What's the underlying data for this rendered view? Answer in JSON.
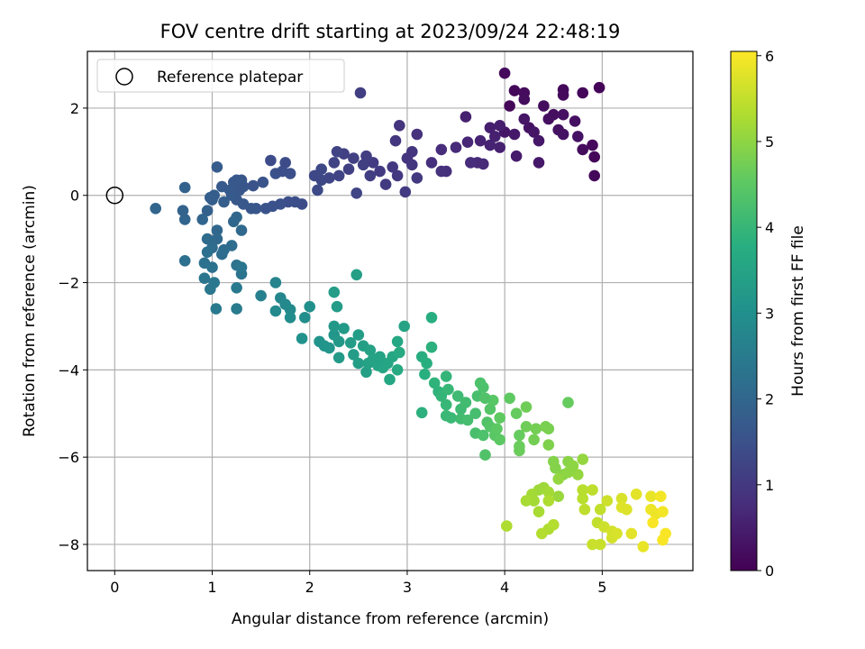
{
  "chart_data": {
    "type": "scatter",
    "title": "FOV centre drift starting at 2023/09/24 22:48:19",
    "xlabel": "Angular distance from reference (arcmin)",
    "ylabel": "Rotation from reference (arcmin)",
    "xlim": [
      -0.28,
      5.93
    ],
    "ylim": [
      -8.6,
      3.3
    ],
    "x_ticks": [
      0,
      1,
      2,
      3,
      4,
      5
    ],
    "x_tick_labels": [
      "0",
      "1",
      "2",
      "3",
      "4",
      "5"
    ],
    "y_ticks": [
      -8,
      -6,
      -4,
      -2,
      0,
      2
    ],
    "y_tick_labels": [
      "−8",
      "−6",
      "−4",
      "−2",
      "0",
      "2"
    ],
    "grid": true,
    "legend": {
      "position": "top-left",
      "entries": [
        {
          "label": "Reference platepar",
          "marker": "open-circle"
        }
      ]
    },
    "reference_point": {
      "x": 0,
      "y": 0
    },
    "colorbar": {
      "label": "Hours from first FF file",
      "range": [
        0,
        6.05
      ],
      "ticks": [
        0,
        1,
        2,
        3,
        4,
        5,
        6
      ],
      "tick_labels": [
        "0",
        "1",
        "2",
        "3",
        "4",
        "5",
        "6"
      ],
      "colormap": "viridis"
    },
    "points": [
      [
        4.97,
        2.47,
        0.05
      ],
      [
        4.8,
        2.35,
        0.1
      ],
      [
        4.6,
        2.42,
        0.12
      ],
      [
        4.6,
        2.3,
        0.15
      ],
      [
        4.05,
        2.05,
        0.1
      ],
      [
        4.1,
        2.4,
        0.12
      ],
      [
        4.2,
        2.35,
        0.18
      ],
      [
        4.2,
        2.2,
        0.2
      ],
      [
        4.4,
        2.05,
        0.2
      ],
      [
        4.5,
        1.85,
        0.22
      ],
      [
        4.6,
        1.85,
        0.25
      ],
      [
        4.45,
        1.75,
        0.25
      ],
      [
        4.72,
        1.7,
        0.25
      ],
      [
        4.9,
        1.15,
        0.15
      ],
      [
        4.8,
        1.05,
        0.18
      ],
      [
        4.92,
        0.88,
        0.1
      ],
      [
        4.92,
        0.45,
        0.12
      ],
      [
        4.75,
        1.35,
        0.3
      ],
      [
        4.25,
        1.55,
        0.3
      ],
      [
        4.2,
        1.75,
        0.35
      ],
      [
        4.0,
        1.45,
        0.35
      ],
      [
        4.1,
        1.4,
        0.4
      ],
      [
        4.3,
        1.45,
        0.35
      ],
      [
        4.35,
        1.25,
        0.4
      ],
      [
        4.55,
        1.5,
        0.3
      ],
      [
        4.35,
        0.75,
        0.4
      ],
      [
        4.12,
        0.9,
        0.45
      ],
      [
        3.95,
        1.6,
        0.5
      ],
      [
        3.85,
        1.55,
        0.5
      ],
      [
        3.9,
        1.35,
        0.55
      ],
      [
        3.95,
        1.1,
        0.55
      ],
      [
        3.85,
        1.15,
        0.6
      ],
      [
        3.75,
        1.25,
        0.6
      ],
      [
        3.62,
        1.22,
        0.65
      ],
      [
        3.5,
        1.1,
        0.7
      ],
      [
        3.6,
        1.8,
        0.55
      ],
      [
        3.72,
        0.75,
        0.7
      ],
      [
        3.78,
        0.72,
        0.7
      ],
      [
        3.65,
        0.75,
        0.75
      ],
      [
        4.6,
        1.4,
        0.3
      ],
      [
        4.0,
        2.8,
        0.15
      ],
      [
        3.35,
        1.05,
        0.75
      ],
      [
        3.25,
        0.75,
        0.8
      ],
      [
        3.4,
        0.55,
        0.8
      ],
      [
        3.35,
        0.55,
        0.85
      ],
      [
        3.1,
        1.4,
        0.85
      ],
      [
        3.05,
        1.0,
        0.9
      ],
      [
        3.0,
        0.85,
        0.9
      ],
      [
        3.05,
        0.7,
        0.95
      ],
      [
        2.92,
        1.6,
        0.9
      ],
      [
        2.88,
        1.25,
        0.95
      ],
      [
        2.9,
        0.45,
        1.0
      ],
      [
        2.98,
        0.08,
        1.05
      ],
      [
        3.1,
        0.4,
        1.0
      ],
      [
        2.85,
        0.65,
        1.0
      ],
      [
        2.78,
        0.25,
        1.05
      ],
      [
        2.72,
        0.55,
        1.05
      ],
      [
        2.62,
        0.45,
        1.1
      ],
      [
        2.55,
        0.7,
        1.1
      ],
      [
        2.65,
        0.75,
        1.05
      ],
      [
        2.58,
        0.9,
        1.1
      ],
      [
        2.45,
        0.85,
        1.15
      ],
      [
        2.4,
        0.6,
        1.15
      ],
      [
        2.35,
        0.95,
        1.15
      ],
      [
        2.28,
        1.0,
        1.2
      ],
      [
        2.25,
        0.75,
        1.2
      ],
      [
        2.3,
        0.45,
        1.2
      ],
      [
        2.48,
        0.05,
        1.25
      ],
      [
        2.52,
        2.35,
        1.1
      ],
      [
        2.2,
        0.4,
        1.25
      ],
      [
        2.12,
        0.6,
        1.3
      ],
      [
        2.05,
        0.45,
        1.3
      ],
      [
        2.12,
        0.35,
        1.3
      ],
      [
        2.08,
        0.12,
        1.35
      ],
      [
        1.92,
        -0.2,
        1.4
      ],
      [
        1.85,
        -0.15,
        1.45
      ],
      [
        1.78,
        -0.15,
        1.45
      ],
      [
        1.7,
        -0.2,
        1.5
      ],
      [
        1.62,
        -0.25,
        1.5
      ],
      [
        1.55,
        -0.3,
        1.55
      ],
      [
        1.45,
        -0.3,
        1.6
      ],
      [
        1.4,
        -0.3,
        1.6
      ],
      [
        1.32,
        -0.2,
        1.65
      ],
      [
        1.25,
        -0.1,
        1.65
      ],
      [
        1.2,
        0.0,
        1.7
      ],
      [
        1.18,
        0.12,
        1.7
      ],
      [
        1.28,
        0.12,
        1.65
      ],
      [
        1.32,
        0.2,
        1.6
      ],
      [
        1.42,
        0.22,
        1.55
      ],
      [
        1.52,
        0.3,
        1.55
      ],
      [
        1.65,
        0.5,
        1.5
      ],
      [
        1.72,
        0.55,
        1.45
      ],
      [
        1.8,
        0.5,
        1.45
      ],
      [
        1.6,
        0.8,
        1.4
      ],
      [
        1.75,
        0.75,
        1.4
      ],
      [
        1.3,
        0.35,
        1.6
      ],
      [
        1.25,
        0.35,
        1.65
      ],
      [
        1.22,
        0.3,
        1.65
      ],
      [
        1.1,
        0.2,
        1.7
      ],
      [
        1.05,
        0.65,
        1.75
      ],
      [
        1.02,
        0.0,
        1.8
      ],
      [
        1.0,
        -0.1,
        1.8
      ],
      [
        0.95,
        -0.35,
        1.85
      ],
      [
        0.98,
        -0.05,
        1.8
      ],
      [
        1.12,
        -0.15,
        1.8
      ],
      [
        0.72,
        0.18,
        1.9
      ],
      [
        0.7,
        -0.35,
        1.9
      ],
      [
        0.72,
        -0.55,
        1.95
      ],
      [
        0.9,
        -0.55,
        1.95
      ],
      [
        0.42,
        -0.3,
        1.95
      ],
      [
        1.05,
        -0.8,
        2.0
      ],
      [
        1.22,
        -0.6,
        2.0
      ],
      [
        1.25,
        -0.5,
        2.0
      ],
      [
        1.3,
        -0.8,
        2.05
      ],
      [
        1.05,
        -1.0,
        2.05
      ],
      [
        1.0,
        -1.2,
        2.1
      ],
      [
        0.95,
        -1.0,
        2.1
      ],
      [
        1.12,
        -1.25,
        2.1
      ],
      [
        1.2,
        -1.15,
        2.15
      ],
      [
        1.1,
        -1.35,
        2.15
      ],
      [
        0.95,
        -1.3,
        2.2
      ],
      [
        0.72,
        -1.5,
        2.2
      ],
      [
        0.92,
        -1.55,
        2.25
      ],
      [
        1.0,
        -1.65,
        2.25
      ],
      [
        1.25,
        -1.6,
        2.3
      ],
      [
        1.3,
        -1.8,
        2.3
      ],
      [
        1.3,
        -1.65,
        2.35
      ],
      [
        0.92,
        -1.9,
        2.35
      ],
      [
        1.02,
        -2.0,
        2.4
      ],
      [
        0.98,
        -2.15,
        2.4
      ],
      [
        1.25,
        -2.12,
        2.45
      ],
      [
        1.04,
        -2.6,
        2.45
      ],
      [
        1.25,
        -2.6,
        2.5
      ],
      [
        1.5,
        -2.3,
        2.6
      ],
      [
        1.65,
        -2.0,
        2.7
      ],
      [
        1.7,
        -2.35,
        2.75
      ],
      [
        1.75,
        -2.5,
        2.8
      ],
      [
        1.8,
        -2.62,
        2.85
      ],
      [
        1.8,
        -2.8,
        2.9
      ],
      [
        1.65,
        -2.65,
        2.85
      ],
      [
        1.95,
        -2.8,
        2.95
      ],
      [
        2.0,
        -2.55,
        3.0
      ],
      [
        1.92,
        -3.28,
        3.05
      ],
      [
        2.1,
        -3.35,
        3.1
      ],
      [
        2.15,
        -3.45,
        3.1
      ],
      [
        2.2,
        -3.5,
        3.15
      ],
      [
        2.25,
        -3.2,
        3.15
      ],
      [
        2.25,
        -3.0,
        3.2
      ],
      [
        2.3,
        -3.35,
        3.2
      ],
      [
        2.35,
        -3.05,
        3.25
      ],
      [
        2.3,
        -3.72,
        3.25
      ],
      [
        2.42,
        -3.38,
        3.3
      ],
      [
        2.45,
        -3.65,
        3.3
      ],
      [
        2.5,
        -3.85,
        3.35
      ],
      [
        2.5,
        -3.2,
        3.35
      ],
      [
        2.55,
        -3.45,
        3.4
      ],
      [
        2.58,
        -4.05,
        3.4
      ],
      [
        2.6,
        -3.85,
        3.45
      ],
      [
        2.62,
        -3.55,
        3.45
      ],
      [
        2.65,
        -3.75,
        3.5
      ],
      [
        2.7,
        -3.9,
        3.5
      ],
      [
        2.72,
        -3.7,
        3.5
      ],
      [
        2.75,
        -3.95,
        3.55
      ],
      [
        2.8,
        -3.85,
        3.55
      ],
      [
        2.82,
        -4.22,
        3.6
      ],
      [
        2.85,
        -3.7,
        3.6
      ],
      [
        2.9,
        -3.35,
        3.6
      ],
      [
        2.9,
        -4.0,
        3.65
      ],
      [
        2.92,
        -3.6,
        3.65
      ],
      [
        2.97,
        -3.0,
        3.5
      ],
      [
        2.25,
        -2.22,
        3.3
      ],
      [
        2.28,
        -2.55,
        3.3
      ],
      [
        2.48,
        -1.82,
        3.4
      ],
      [
        3.15,
        -3.7,
        3.75
      ],
      [
        3.2,
        -3.85,
        3.8
      ],
      [
        3.18,
        -4.1,
        3.8
      ],
      [
        3.15,
        -4.98,
        3.85
      ],
      [
        3.25,
        -3.48,
        3.85
      ],
      [
        3.28,
        -4.3,
        3.9
      ],
      [
        3.32,
        -4.5,
        3.9
      ],
      [
        3.25,
        -2.8,
        3.75
      ],
      [
        3.35,
        -4.6,
        3.95
      ],
      [
        3.4,
        -4.15,
        3.95
      ],
      [
        3.42,
        -4.45,
        4.0
      ],
      [
        3.4,
        -4.8,
        4.0
      ],
      [
        3.45,
        -5.1,
        4.05
      ],
      [
        3.4,
        -5.05,
        4.05
      ],
      [
        3.52,
        -4.6,
        4.1
      ],
      [
        3.55,
        -4.9,
        4.1
      ],
      [
        3.55,
        -5.12,
        4.15
      ],
      [
        3.6,
        -4.75,
        4.15
      ],
      [
        3.62,
        -5.15,
        4.2
      ],
      [
        3.7,
        -5.0,
        4.2
      ],
      [
        3.7,
        -5.45,
        4.25
      ],
      [
        3.72,
        -4.6,
        4.25
      ],
      [
        3.78,
        -4.4,
        4.3
      ],
      [
        3.78,
        -5.5,
        4.3
      ],
      [
        3.8,
        -5.95,
        4.35
      ],
      [
        3.82,
        -5.2,
        4.35
      ],
      [
        3.85,
        -4.9,
        4.4
      ],
      [
        3.85,
        -5.3,
        4.4
      ],
      [
        3.88,
        -4.7,
        4.45
      ],
      [
        3.9,
        -5.5,
        4.45
      ],
      [
        3.92,
        -5.35,
        4.5
      ],
      [
        3.95,
        -5.6,
        4.5
      ],
      [
        3.95,
        -5.1,
        4.55
      ],
      [
        3.75,
        -4.3,
        4.3
      ],
      [
        3.8,
        -4.65,
        4.35
      ],
      [
        4.05,
        -4.65,
        4.55
      ],
      [
        4.12,
        -5.0,
        4.6
      ],
      [
        4.15,
        -5.5,
        4.6
      ],
      [
        4.15,
        -5.85,
        4.65
      ],
      [
        4.15,
        -5.75,
        4.65
      ],
      [
        4.22,
        -5.3,
        4.7
      ],
      [
        4.22,
        -4.85,
        4.7
      ],
      [
        4.3,
        -5.6,
        4.75
      ],
      [
        4.32,
        -5.35,
        4.75
      ],
      [
        4.42,
        -5.3,
        4.8
      ],
      [
        4.45,
        -5.35,
        4.8
      ],
      [
        4.45,
        -5.72,
        4.85
      ],
      [
        4.65,
        -4.75,
        4.6
      ],
      [
        4.5,
        -6.1,
        4.9
      ],
      [
        4.52,
        -6.25,
        4.9
      ],
      [
        4.6,
        -6.4,
        4.95
      ],
      [
        4.65,
        -6.1,
        4.95
      ],
      [
        4.65,
        -6.35,
        5.0
      ],
      [
        4.7,
        -6.2,
        5.0
      ],
      [
        4.75,
        -6.4,
        5.05
      ],
      [
        4.8,
        -6.05,
        5.05
      ],
      [
        4.55,
        -6.5,
        5.05
      ],
      [
        4.55,
        -6.9,
        5.1
      ],
      [
        4.35,
        -6.75,
        5.15
      ],
      [
        4.4,
        -6.7,
        5.15
      ],
      [
        4.45,
        -6.8,
        5.2
      ],
      [
        4.3,
        -7.0,
        5.2
      ],
      [
        4.28,
        -6.85,
        5.2
      ],
      [
        4.22,
        -7.0,
        5.25
      ],
      [
        4.35,
        -7.25,
        5.25
      ],
      [
        4.45,
        -7.0,
        5.3
      ],
      [
        4.45,
        -7.65,
        5.3
      ],
      [
        4.5,
        -7.55,
        5.35
      ],
      [
        4.38,
        -7.75,
        5.35
      ],
      [
        4.02,
        -7.58,
        5.3
      ],
      [
        4.8,
        -6.75,
        5.4
      ],
      [
        4.8,
        -6.95,
        5.4
      ],
      [
        4.82,
        -7.2,
        5.45
      ],
      [
        4.9,
        -6.75,
        5.45
      ],
      [
        4.98,
        -7.2,
        5.5
      ],
      [
        4.95,
        -7.5,
        5.5
      ],
      [
        4.9,
        -8.0,
        5.55
      ],
      [
        4.98,
        -8.0,
        5.55
      ],
      [
        5.02,
        -7.6,
        5.6
      ],
      [
        5.05,
        -7.0,
        5.6
      ],
      [
        5.1,
        -7.85,
        5.65
      ],
      [
        5.1,
        -7.7,
        5.65
      ],
      [
        5.15,
        -7.75,
        5.7
      ],
      [
        5.2,
        -6.95,
        5.7
      ],
      [
        5.2,
        -7.15,
        5.75
      ],
      [
        5.25,
        -7.2,
        5.75
      ],
      [
        5.3,
        -7.75,
        5.8
      ],
      [
        5.35,
        -6.85,
        5.8
      ],
      [
        5.42,
        -8.05,
        5.85
      ],
      [
        5.5,
        -6.9,
        5.85
      ],
      [
        5.5,
        -7.2,
        5.9
      ],
      [
        5.55,
        -7.3,
        5.9
      ],
      [
        5.6,
        -6.9,
        5.95
      ],
      [
        5.62,
        -7.25,
        5.95
      ],
      [
        5.65,
        -7.75,
        6.0
      ],
      [
        5.62,
        -7.9,
        6.0
      ],
      [
        5.52,
        -7.5,
        6.0
      ]
    ]
  }
}
